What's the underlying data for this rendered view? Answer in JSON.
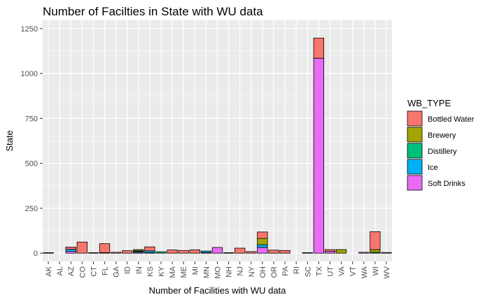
{
  "chart_data": {
    "type": "bar",
    "stacked": true,
    "title": "Number of Facilties in State with WU data",
    "xlabel": "Number of Facilities with WU data",
    "ylabel": "State",
    "ylim": [
      0,
      1250
    ],
    "yticks": [
      0,
      250,
      500,
      750,
      1000,
      1250
    ],
    "grid": true,
    "legend_position": "right",
    "legend_title": "WB_TYPE",
    "categories": [
      "AK",
      "AL",
      "AZ",
      "CO",
      "CT",
      "FL",
      "GA",
      "ID",
      "IN",
      "KS",
      "KY",
      "MA",
      "ME",
      "MI",
      "MN",
      "MO",
      "NH",
      "NJ",
      "NY",
      "OH",
      "OR",
      "PA",
      "RI",
      "SC",
      "TX",
      "UT",
      "VA",
      "VT",
      "WA",
      "WI",
      "WV"
    ],
    "series": [
      {
        "name": "Bottled Water",
        "color": "#F8766D",
        "values": [
          3,
          0,
          12,
          62,
          0,
          50,
          5,
          14,
          0,
          22,
          0,
          18,
          15,
          19,
          0,
          0,
          0,
          28,
          9,
          36,
          17,
          15,
          0,
          0,
          112,
          10,
          0,
          0,
          0,
          100,
          0
        ]
      },
      {
        "name": "Brewery",
        "color": "#A3A500",
        "values": [
          0,
          0,
          0,
          0,
          0,
          0,
          0,
          0,
          7,
          0,
          0,
          0,
          0,
          0,
          0,
          0,
          0,
          0,
          0,
          35,
          0,
          0,
          0,
          0,
          0,
          0,
          20,
          0,
          0,
          15,
          0
        ]
      },
      {
        "name": "Distillery",
        "color": "#00BF7D",
        "values": [
          0,
          0,
          0,
          0,
          0,
          0,
          0,
          0,
          3,
          0,
          8,
          0,
          0,
          0,
          0,
          0,
          0,
          0,
          0,
          0,
          0,
          0,
          0,
          0,
          0,
          0,
          0,
          0,
          0,
          5,
          0
        ]
      },
      {
        "name": "Ice",
        "color": "#00B0F6",
        "values": [
          0,
          0,
          12,
          0,
          0,
          0,
          0,
          0,
          5,
          10,
          0,
          0,
          0,
          0,
          8,
          0,
          0,
          0,
          0,
          15,
          0,
          0,
          0,
          0,
          0,
          0,
          0,
          0,
          0,
          0,
          0
        ]
      },
      {
        "name": "Soft Drinks",
        "color": "#E76BF3",
        "values": [
          0,
          0,
          10,
          0,
          3,
          3,
          0,
          0,
          5,
          3,
          0,
          0,
          0,
          0,
          4,
          32,
          3,
          0,
          0,
          32,
          0,
          0,
          0,
          3,
          1085,
          10,
          0,
          0,
          5,
          0,
          4
        ]
      }
    ]
  }
}
